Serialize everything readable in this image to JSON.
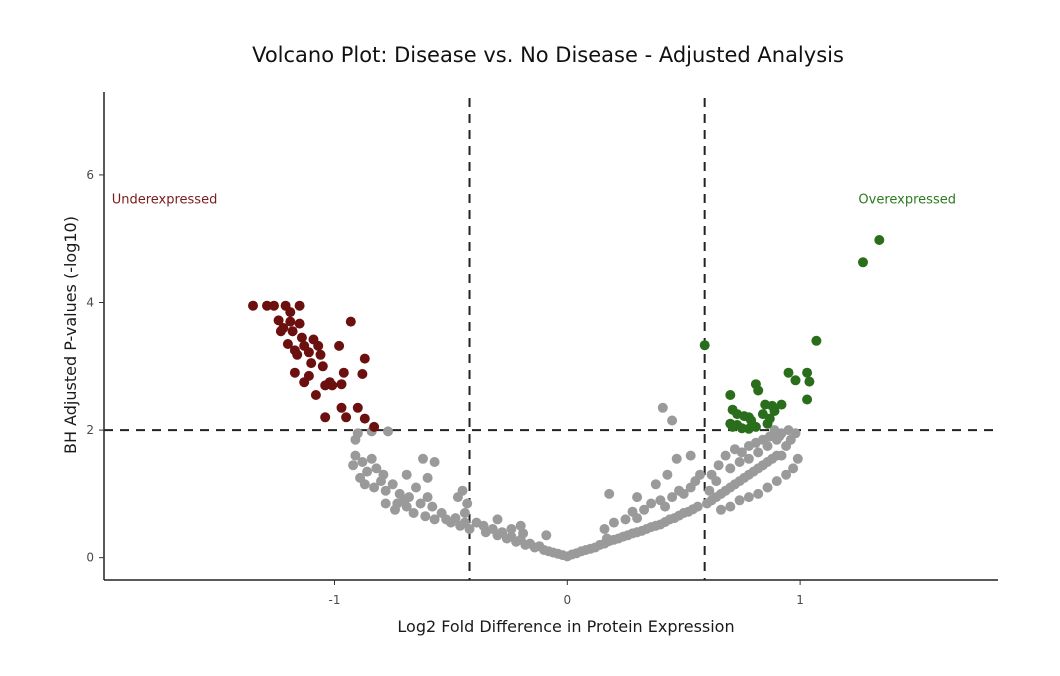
{
  "chart_data": {
    "type": "scatter",
    "title": "Volcano Plot: Disease vs. No Disease - Adjusted Analysis",
    "xlabel": "Log2 Fold Difference in Protein Expression",
    "ylabel": "BH Adjusted P-values (-log10)",
    "xlim": [
      -1.99,
      1.85
    ],
    "ylim": [
      -0.35,
      7.3
    ],
    "x_ticks": [
      -1,
      0,
      1
    ],
    "x_tick_labels": [
      "-1",
      "0",
      "1"
    ],
    "y_ticks": [
      0,
      2,
      4,
      6
    ],
    "y_tick_labels": [
      "0",
      "2",
      "4",
      "6"
    ],
    "grid": false,
    "thresholds": {
      "x": [
        -0.42,
        0.59
      ],
      "y": [
        2
      ]
    },
    "annotations": [
      {
        "text": "Underexpressed",
        "x": -1.73,
        "y": 5.55,
        "color": "#7a1a1a"
      },
      {
        "text": "Overexpressed",
        "x": 1.46,
        "y": 5.55,
        "color": "#2d7a1f"
      }
    ],
    "series": [
      {
        "category": "underexpressed",
        "color": "#6b0f0f",
        "points": [
          [
            -1.35,
            3.95
          ],
          [
            -1.29,
            3.95
          ],
          [
            -1.26,
            3.95
          ],
          [
            -1.21,
            3.95
          ],
          [
            -1.15,
            3.95
          ],
          [
            -1.19,
            3.85
          ],
          [
            -1.24,
            3.72
          ],
          [
            -1.19,
            3.7
          ],
          [
            -1.15,
            3.67
          ],
          [
            -0.93,
            3.7
          ],
          [
            -1.22,
            3.6
          ],
          [
            -1.18,
            3.55
          ],
          [
            -1.23,
            3.55
          ],
          [
            -1.14,
            3.45
          ],
          [
            -1.09,
            3.42
          ],
          [
            -1.2,
            3.35
          ],
          [
            -1.13,
            3.32
          ],
          [
            -1.07,
            3.32
          ],
          [
            -0.98,
            3.32
          ],
          [
            -1.17,
            3.25
          ],
          [
            -1.11,
            3.22
          ],
          [
            -1.16,
            3.18
          ],
          [
            -1.06,
            3.18
          ],
          [
            -0.87,
            3.12
          ],
          [
            -1.1,
            3.05
          ],
          [
            -1.05,
            3.0
          ],
          [
            -0.96,
            2.9
          ],
          [
            -0.88,
            2.88
          ],
          [
            -1.17,
            2.9
          ],
          [
            -1.11,
            2.85
          ],
          [
            -1.02,
            2.75
          ],
          [
            -0.97,
            2.72
          ],
          [
            -1.01,
            2.7
          ],
          [
            -1.04,
            2.7
          ],
          [
            -1.13,
            2.75
          ],
          [
            -1.08,
            2.55
          ],
          [
            -0.9,
            2.35
          ],
          [
            -0.97,
            2.35
          ],
          [
            -0.95,
            2.2
          ],
          [
            -1.04,
            2.2
          ],
          [
            -0.87,
            2.18
          ],
          [
            -0.83,
            2.05
          ]
        ]
      },
      {
        "category": "overexpressed",
        "color": "#2a6e1c",
        "points": [
          [
            1.34,
            4.98
          ],
          [
            1.27,
            4.63
          ],
          [
            0.59,
            3.33
          ],
          [
            1.07,
            3.4
          ],
          [
            0.95,
            2.9
          ],
          [
            1.03,
            2.9
          ],
          [
            0.98,
            2.78
          ],
          [
            1.04,
            2.76
          ],
          [
            0.81,
            2.72
          ],
          [
            0.82,
            2.62
          ],
          [
            0.7,
            2.55
          ],
          [
            0.85,
            2.4
          ],
          [
            0.88,
            2.38
          ],
          [
            0.92,
            2.4
          ],
          [
            0.89,
            2.3
          ],
          [
            1.03,
            2.48
          ],
          [
            0.71,
            2.32
          ],
          [
            0.73,
            2.25
          ],
          [
            0.76,
            2.22
          ],
          [
            0.78,
            2.2
          ],
          [
            0.84,
            2.25
          ],
          [
            0.87,
            2.18
          ],
          [
            0.79,
            2.15
          ],
          [
            0.86,
            2.1
          ],
          [
            0.81,
            2.05
          ],
          [
            0.73,
            2.08
          ],
          [
            0.71,
            2.05
          ],
          [
            0.75,
            2.03
          ],
          [
            0.78,
            2.02
          ],
          [
            0.7,
            2.1
          ]
        ]
      },
      {
        "category": "not significant",
        "color": "#9a9a9a",
        "points": [
          [
            -0.9,
            1.95
          ],
          [
            -0.84,
            1.98
          ],
          [
            -0.77,
            1.98
          ],
          [
            -0.91,
            1.85
          ],
          [
            -0.91,
            1.6
          ],
          [
            -0.92,
            1.45
          ],
          [
            -0.88,
            1.5
          ],
          [
            -0.86,
            1.35
          ],
          [
            -0.84,
            1.55
          ],
          [
            -0.82,
            1.4
          ],
          [
            -0.79,
            1.3
          ],
          [
            -0.8,
            1.2
          ],
          [
            -0.87,
            1.15
          ],
          [
            -0.89,
            1.25
          ],
          [
            -0.83,
            1.1
          ],
          [
            -0.78,
            1.05
          ],
          [
            -0.75,
            1.15
          ],
          [
            -0.72,
            1.0
          ],
          [
            -0.69,
            1.3
          ],
          [
            -0.65,
            1.1
          ],
          [
            -0.68,
            0.95
          ],
          [
            -0.63,
            0.85
          ],
          [
            -0.6,
            0.95
          ],
          [
            -0.58,
            0.8
          ],
          [
            -0.6,
            1.25
          ],
          [
            -0.57,
            1.5
          ],
          [
            -0.62,
            1.55
          ],
          [
            -0.7,
            0.9
          ],
          [
            -0.73,
            0.85
          ],
          [
            -0.78,
            0.85
          ],
          [
            -0.74,
            0.75
          ],
          [
            -0.69,
            0.8
          ],
          [
            -0.66,
            0.7
          ],
          [
            -0.61,
            0.65
          ],
          [
            -0.57,
            0.6
          ],
          [
            -0.54,
            0.7
          ],
          [
            -0.52,
            0.6
          ],
          [
            -0.5,
            0.55
          ],
          [
            -0.48,
            0.62
          ],
          [
            -0.46,
            0.5
          ],
          [
            -0.44,
            0.55
          ],
          [
            -0.42,
            0.45
          ],
          [
            -0.44,
            0.7
          ],
          [
            -0.47,
            0.95
          ],
          [
            -0.45,
            1.05
          ],
          [
            -0.43,
            0.85
          ],
          [
            -0.39,
            0.55
          ],
          [
            -0.36,
            0.5
          ],
          [
            -0.35,
            0.4
          ],
          [
            -0.32,
            0.45
          ],
          [
            -0.3,
            0.35
          ],
          [
            -0.28,
            0.4
          ],
          [
            -0.26,
            0.3
          ],
          [
            -0.24,
            0.33
          ],
          [
            -0.22,
            0.25
          ],
          [
            -0.2,
            0.28
          ],
          [
            -0.18,
            0.2
          ],
          [
            -0.16,
            0.22
          ],
          [
            -0.14,
            0.16
          ],
          [
            -0.12,
            0.18
          ],
          [
            -0.1,
            0.12
          ],
          [
            -0.08,
            0.1
          ],
          [
            -0.06,
            0.08
          ],
          [
            -0.04,
            0.06
          ],
          [
            -0.02,
            0.04
          ],
          [
            0.0,
            0.02
          ],
          [
            0.02,
            0.05
          ],
          [
            0.04,
            0.07
          ],
          [
            0.06,
            0.1
          ],
          [
            0.08,
            0.12
          ],
          [
            -0.19,
            0.38
          ],
          [
            -0.24,
            0.45
          ],
          [
            -0.2,
            0.5
          ],
          [
            -0.09,
            0.35
          ],
          [
            -0.3,
            0.6
          ],
          [
            0.1,
            0.14
          ],
          [
            0.12,
            0.16
          ],
          [
            0.14,
            0.2
          ],
          [
            0.16,
            0.22
          ],
          [
            0.18,
            0.26
          ],
          [
            0.2,
            0.28
          ],
          [
            0.22,
            0.3
          ],
          [
            0.24,
            0.33
          ],
          [
            0.26,
            0.35
          ],
          [
            0.28,
            0.38
          ],
          [
            0.3,
            0.4
          ],
          [
            0.32,
            0.42
          ],
          [
            0.34,
            0.45
          ],
          [
            0.36,
            0.48
          ],
          [
            0.38,
            0.5
          ],
          [
            0.4,
            0.52
          ],
          [
            0.42,
            0.56
          ],
          [
            0.44,
            0.6
          ],
          [
            0.46,
            0.62
          ],
          [
            0.48,
            0.66
          ],
          [
            0.5,
            0.7
          ],
          [
            0.52,
            0.72
          ],
          [
            0.54,
            0.76
          ],
          [
            0.56,
            0.8
          ],
          [
            0.16,
            0.45
          ],
          [
            0.2,
            0.55
          ],
          [
            0.25,
            0.6
          ],
          [
            0.28,
            0.72
          ],
          [
            0.17,
            0.3
          ],
          [
            0.3,
            0.62
          ],
          [
            0.33,
            0.75
          ],
          [
            0.36,
            0.85
          ],
          [
            0.4,
            0.9
          ],
          [
            0.42,
            0.8
          ],
          [
            0.45,
            0.95
          ],
          [
            0.48,
            1.05
          ],
          [
            0.5,
            1.0
          ],
          [
            0.53,
            1.1
          ],
          [
            0.55,
            1.2
          ],
          [
            0.57,
            1.3
          ],
          [
            0.18,
            1.0
          ],
          [
            0.3,
            0.95
          ],
          [
            0.38,
            1.15
          ],
          [
            0.41,
            2.35
          ],
          [
            0.47,
            1.55
          ],
          [
            0.45,
            2.15
          ],
          [
            0.53,
            1.6
          ],
          [
            0.43,
            1.3
          ],
          [
            0.6,
            0.85
          ],
          [
            0.62,
            0.9
          ],
          [
            0.64,
            0.95
          ],
          [
            0.66,
            1.0
          ],
          [
            0.68,
            1.05
          ],
          [
            0.7,
            1.1
          ],
          [
            0.72,
            1.15
          ],
          [
            0.74,
            1.2
          ],
          [
            0.76,
            1.25
          ],
          [
            0.78,
            1.3
          ],
          [
            0.8,
            1.35
          ],
          [
            0.82,
            1.4
          ],
          [
            0.84,
            1.45
          ],
          [
            0.86,
            1.5
          ],
          [
            0.88,
            1.55
          ],
          [
            0.9,
            1.6
          ],
          [
            0.62,
            1.3
          ],
          [
            0.65,
            1.45
          ],
          [
            0.68,
            1.6
          ],
          [
            0.72,
            1.7
          ],
          [
            0.75,
            1.65
          ],
          [
            0.78,
            1.75
          ],
          [
            0.81,
            1.8
          ],
          [
            0.84,
            1.85
          ],
          [
            0.87,
            1.9
          ],
          [
            0.92,
            1.6
          ],
          [
            0.94,
            1.75
          ],
          [
            0.96,
            1.85
          ],
          [
            0.98,
            1.95
          ],
          [
            0.95,
            2.0
          ],
          [
            0.89,
            2.0
          ],
          [
            0.61,
            1.05
          ],
          [
            0.64,
            1.2
          ],
          [
            0.7,
            1.4
          ],
          [
            0.74,
            1.5
          ],
          [
            0.78,
            1.55
          ],
          [
            0.82,
            1.65
          ],
          [
            0.86,
            1.75
          ],
          [
            0.9,
            1.85
          ],
          [
            0.66,
            0.75
          ],
          [
            0.7,
            0.8
          ],
          [
            0.74,
            0.9
          ],
          [
            0.78,
            0.95
          ],
          [
            0.82,
            1.0
          ],
          [
            0.86,
            1.1
          ],
          [
            0.9,
            1.2
          ],
          [
            0.94,
            1.3
          ],
          [
            0.97,
            1.4
          ],
          [
            0.99,
            1.55
          ],
          [
            0.92,
            1.95
          ],
          [
            0.91,
            1.9
          ]
        ]
      }
    ]
  }
}
